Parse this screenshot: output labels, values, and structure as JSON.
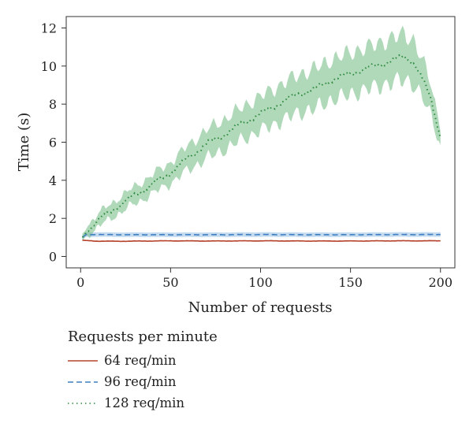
{
  "chart_data": {
    "type": "line",
    "xlabel": "Number of requests",
    "ylabel": "Time (s)",
    "xlim": [
      -8,
      208
    ],
    "ylim": [
      -0.6,
      12.6
    ],
    "xticks": [
      0,
      50,
      100,
      150,
      200
    ],
    "yticks": [
      0,
      2,
      4,
      6,
      8,
      10,
      12
    ],
    "grid": false,
    "legend": {
      "title": "Requests per minute",
      "placement": "bottom-left"
    },
    "series": [
      {
        "name": "64 req/min",
        "color": "#b5432b",
        "line_style": "solid",
        "x": [
          1,
          10,
          25,
          50,
          75,
          100,
          125,
          150,
          175,
          200
        ],
        "y": [
          0.85,
          0.8,
          0.8,
          0.82,
          0.81,
          0.82,
          0.81,
          0.81,
          0.82,
          0.82
        ],
        "band": 0.03
      },
      {
        "name": "96 req/min",
        "color": "#3f7fc1",
        "band_color": "#9ec3e6",
        "line_style": "dashed",
        "x": [
          1,
          3,
          10,
          25,
          50,
          75,
          100,
          125,
          150,
          175,
          200
        ],
        "y": [
          1.0,
          1.15,
          1.15,
          1.14,
          1.14,
          1.14,
          1.15,
          1.14,
          1.14,
          1.15,
          1.15
        ],
        "band": 0.12
      },
      {
        "name": "128 req/min",
        "color": "#2e8b3e",
        "band_color": "#7cc08c",
        "line_style": "dotted",
        "x": [
          1,
          5,
          10,
          20,
          30,
          40,
          50,
          60,
          70,
          80,
          90,
          100,
          110,
          120,
          130,
          140,
          150,
          160,
          170,
          180,
          185,
          190,
          195,
          200
        ],
        "y": [
          1.0,
          1.5,
          1.9,
          2.6,
          3.2,
          3.8,
          4.4,
          5.2,
          5.9,
          6.4,
          7.0,
          7.5,
          8.0,
          8.5,
          8.8,
          9.3,
          9.6,
          9.9,
          10.2,
          10.5,
          10.2,
          9.3,
          8.2,
          6.2
        ],
        "band": [
          0.2,
          0.3,
          0.35,
          0.4,
          0.45,
          0.5,
          0.55,
          0.65,
          0.75,
          0.8,
          0.85,
          0.9,
          0.95,
          1.0,
          1.05,
          1.05,
          1.1,
          1.1,
          1.15,
          1.2,
          1.15,
          1.0,
          0.8,
          0.5
        ]
      }
    ]
  }
}
